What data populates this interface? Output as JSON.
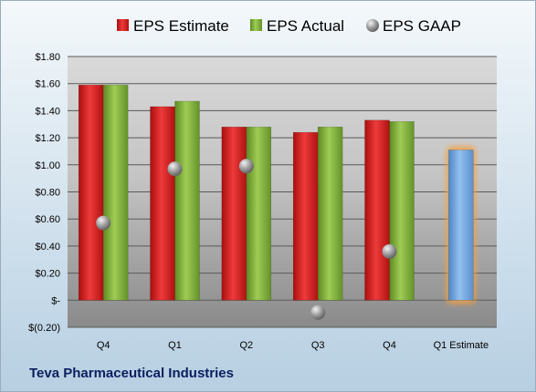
{
  "chart_data": {
    "type": "bar",
    "company": "Teva Pharmaceutical Industries",
    "categories": [
      "Q4",
      "Q1",
      "Q2",
      "Q3",
      "Q4",
      "Q1 Estimate"
    ],
    "series": [
      {
        "name": "EPS Estimate",
        "values": [
          1.59,
          1.43,
          1.28,
          1.24,
          1.33,
          null
        ],
        "color": "#d42020"
      },
      {
        "name": "EPS Actual",
        "values": [
          1.59,
          1.47,
          1.28,
          1.28,
          1.32,
          null
        ],
        "color": "#82b23a"
      },
      {
        "name": "EPS GAAP",
        "values": [
          0.57,
          0.97,
          0.99,
          -0.09,
          0.36,
          null
        ],
        "color": "#9aa0a6"
      }
    ],
    "estimate": {
      "category": "Q1 Estimate",
      "value": 1.11,
      "color": "#6fa3dd",
      "glow": "#f5a040"
    },
    "yticks": [
      -0.2,
      0,
      0.2,
      0.4,
      0.6,
      0.8,
      1.0,
      1.2,
      1.4,
      1.6,
      1.8
    ],
    "ytick_labels": [
      "$(0.20)",
      "$-",
      "$0.20",
      "$0.40",
      "$0.60",
      "$0.80",
      "$1.00",
      "$1.20",
      "$1.40",
      "$1.60",
      "$1.80"
    ],
    "ylim": [
      -0.2,
      1.8
    ],
    "legend_position": "top",
    "grid": true
  }
}
